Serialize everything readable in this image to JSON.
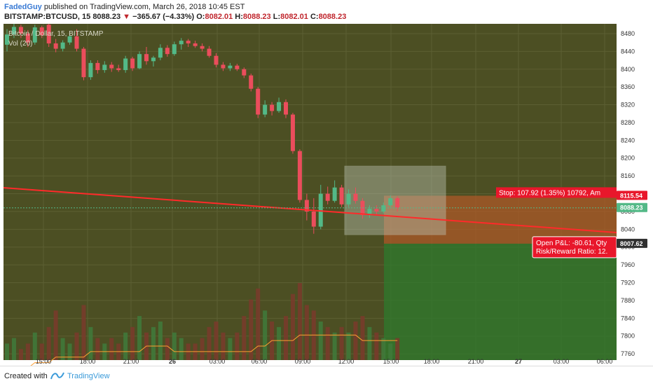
{
  "header": {
    "author": "FadedGuy",
    "publish_text": " published on TradingView.com, March 26, 2018 10:45 EST",
    "symbol": "BITSTAMP:BTCUSD, 15",
    "last": "8088.23",
    "change": "−365.67 (−4.33%)",
    "o_label": "O:",
    "o_value": "8082.01",
    "h_label": "H:",
    "h_value": "8088.23",
    "l_label": "L:",
    "l_value": "8082.01",
    "c_label": "C:",
    "c_value": "8088.23"
  },
  "footer": {
    "created_with": "Created with",
    "brand": "TradingView"
  },
  "colors": {
    "chart_bg": "#4c4f23",
    "up": "#53b987",
    "down": "#eb4d5c",
    "trend": "#ff2a2a",
    "stop_zone": "#b45a28",
    "target_zone": "#2e7a2e",
    "volume_ma": "#ff9f30"
  },
  "chart_data": {
    "type": "candlestick",
    "title": "Bitcoin / Dollar, 15, BITSTAMP",
    "indicator": "Vol (20)",
    "y_ticks": [
      8480,
      8440,
      8400,
      8360,
      8320,
      8280,
      8240,
      8200,
      8160,
      8120,
      8080,
      8040,
      8000,
      7960,
      7920,
      7880,
      7840,
      7800,
      7760
    ],
    "y_range": [
      7746,
      8502
    ],
    "x_ticks": [
      "15:00",
      "18:00",
      "21:00",
      "26",
      "03:00",
      "06:00",
      "09:00",
      "12:00",
      "15:00",
      "18:00",
      "21:00",
      "27",
      "03:00",
      "06:00"
    ],
    "price_labels": {
      "stop": "8115.54",
      "last": "8088.23",
      "target": "8007.62"
    },
    "annotations": {
      "stop": "Stop: 107.92 (1.35%) 10792, Am",
      "pnl": "Open P&L: -80.61, Qty",
      "rr": "Risk/Reward Ratio: 12."
    },
    "candles": [
      {
        "o": 8455,
        "h": 8490,
        "l": 8440,
        "c": 8478
      },
      {
        "o": 8478,
        "h": 8510,
        "l": 8470,
        "c": 8495
      },
      {
        "o": 8495,
        "h": 8500,
        "l": 8470,
        "c": 8480
      },
      {
        "o": 8480,
        "h": 8488,
        "l": 8450,
        "c": 8460
      },
      {
        "o": 8460,
        "h": 8500,
        "l": 8455,
        "c": 8494
      },
      {
        "o": 8494,
        "h": 8498,
        "l": 8470,
        "c": 8476
      },
      {
        "o": 8500,
        "h": 8502,
        "l": 8450,
        "c": 8458
      },
      {
        "o": 8458,
        "h": 8468,
        "l": 8438,
        "c": 8446
      },
      {
        "o": 8446,
        "h": 8465,
        "l": 8440,
        "c": 8460
      },
      {
        "o": 8460,
        "h": 8480,
        "l": 8455,
        "c": 8474
      },
      {
        "o": 8474,
        "h": 8490,
        "l": 8440,
        "c": 8446
      },
      {
        "o": 8446,
        "h": 8450,
        "l": 8375,
        "c": 8382
      },
      {
        "o": 8382,
        "h": 8420,
        "l": 8376,
        "c": 8414
      },
      {
        "o": 8414,
        "h": 8420,
        "l": 8390,
        "c": 8398
      },
      {
        "o": 8398,
        "h": 8418,
        "l": 8392,
        "c": 8410
      },
      {
        "o": 8410,
        "h": 8416,
        "l": 8394,
        "c": 8402
      },
      {
        "o": 8402,
        "h": 8410,
        "l": 8394,
        "c": 8398
      },
      {
        "o": 8398,
        "h": 8430,
        "l": 8392,
        "c": 8424
      },
      {
        "o": 8424,
        "h": 8428,
        "l": 8396,
        "c": 8402
      },
      {
        "o": 8402,
        "h": 8440,
        "l": 8400,
        "c": 8434
      },
      {
        "o": 8434,
        "h": 8450,
        "l": 8410,
        "c": 8418
      },
      {
        "o": 8418,
        "h": 8430,
        "l": 8406,
        "c": 8426
      },
      {
        "o": 8426,
        "h": 8456,
        "l": 8420,
        "c": 8448
      },
      {
        "o": 8448,
        "h": 8454,
        "l": 8428,
        "c": 8434
      },
      {
        "o": 8434,
        "h": 8462,
        "l": 8430,
        "c": 8456
      },
      {
        "o": 8456,
        "h": 8470,
        "l": 8444,
        "c": 8464
      },
      {
        "o": 8464,
        "h": 8468,
        "l": 8450,
        "c": 8458
      },
      {
        "o": 8458,
        "h": 8464,
        "l": 8448,
        "c": 8452
      },
      {
        "o": 8452,
        "h": 8458,
        "l": 8440,
        "c": 8446
      },
      {
        "o": 8446,
        "h": 8452,
        "l": 8426,
        "c": 8430
      },
      {
        "o": 8430,
        "h": 8436,
        "l": 8404,
        "c": 8410
      },
      {
        "o": 8410,
        "h": 8416,
        "l": 8396,
        "c": 8402
      },
      {
        "o": 8402,
        "h": 8414,
        "l": 8396,
        "c": 8408
      },
      {
        "o": 8408,
        "h": 8412,
        "l": 8396,
        "c": 8400
      },
      {
        "o": 8400,
        "h": 8404,
        "l": 8380,
        "c": 8386
      },
      {
        "o": 8386,
        "h": 8390,
        "l": 8350,
        "c": 8356
      },
      {
        "o": 8356,
        "h": 8360,
        "l": 8290,
        "c": 8298
      },
      {
        "o": 8298,
        "h": 8330,
        "l": 8292,
        "c": 8320
      },
      {
        "o": 8320,
        "h": 8326,
        "l": 8296,
        "c": 8306
      },
      {
        "o": 8306,
        "h": 8336,
        "l": 8302,
        "c": 8326
      },
      {
        "o": 8326,
        "h": 8332,
        "l": 8290,
        "c": 8298
      },
      {
        "o": 8298,
        "h": 8302,
        "l": 8210,
        "c": 8216
      },
      {
        "o": 8216,
        "h": 8220,
        "l": 8100,
        "c": 8106
      },
      {
        "o": 8106,
        "h": 8120,
        "l": 8060,
        "c": 8080
      },
      {
        "o": 8080,
        "h": 8110,
        "l": 8030,
        "c": 8046
      },
      {
        "o": 8046,
        "h": 8140,
        "l": 8040,
        "c": 8120
      },
      {
        "o": 8120,
        "h": 8136,
        "l": 8096,
        "c": 8104
      },
      {
        "o": 8104,
        "h": 8150,
        "l": 8100,
        "c": 8134
      },
      {
        "o": 8134,
        "h": 8140,
        "l": 8090,
        "c": 8096
      },
      {
        "o": 8096,
        "h": 8130,
        "l": 8090,
        "c": 8120
      },
      {
        "o": 8120,
        "h": 8134,
        "l": 8098,
        "c": 8104
      },
      {
        "o": 8104,
        "h": 8110,
        "l": 8064,
        "c": 8072
      },
      {
        "o": 8072,
        "h": 8094,
        "l": 8066,
        "c": 8086
      },
      {
        "o": 8086,
        "h": 8094,
        "l": 8072,
        "c": 8080
      },
      {
        "o": 8080,
        "h": 8100,
        "l": 8076,
        "c": 8094
      },
      {
        "o": 8094,
        "h": 8116,
        "l": 8090,
        "c": 8110
      },
      {
        "o": 8110,
        "h": 8114,
        "l": 8080,
        "c": 8088
      }
    ],
    "volume": [
      3,
      4,
      2,
      3,
      5,
      3,
      6,
      9,
      4,
      3,
      5,
      10,
      6,
      4,
      3,
      4,
      3,
      5,
      6,
      8,
      5,
      6,
      7,
      4,
      5,
      4,
      3,
      3,
      4,
      6,
      7,
      5,
      4,
      5,
      8,
      11,
      13,
      9,
      7,
      6,
      8,
      12,
      14,
      10,
      9,
      7,
      6,
      5,
      6,
      5,
      7,
      8,
      6,
      5,
      4,
      3,
      4
    ],
    "volume_ma": [
      3,
      3,
      3,
      3,
      4,
      4,
      4,
      5,
      5,
      5,
      5,
      5,
      6,
      6,
      6,
      6,
      6,
      6,
      6,
      6,
      7,
      7,
      7,
      7,
      6,
      6,
      6,
      6,
      6,
      6,
      6,
      6,
      6,
      6,
      6,
      6,
      7,
      7,
      8,
      8,
      8,
      8,
      9,
      9,
      9,
      9,
      9,
      9,
      9,
      9,
      9,
      8,
      8,
      8,
      8,
      8,
      8
    ]
  }
}
